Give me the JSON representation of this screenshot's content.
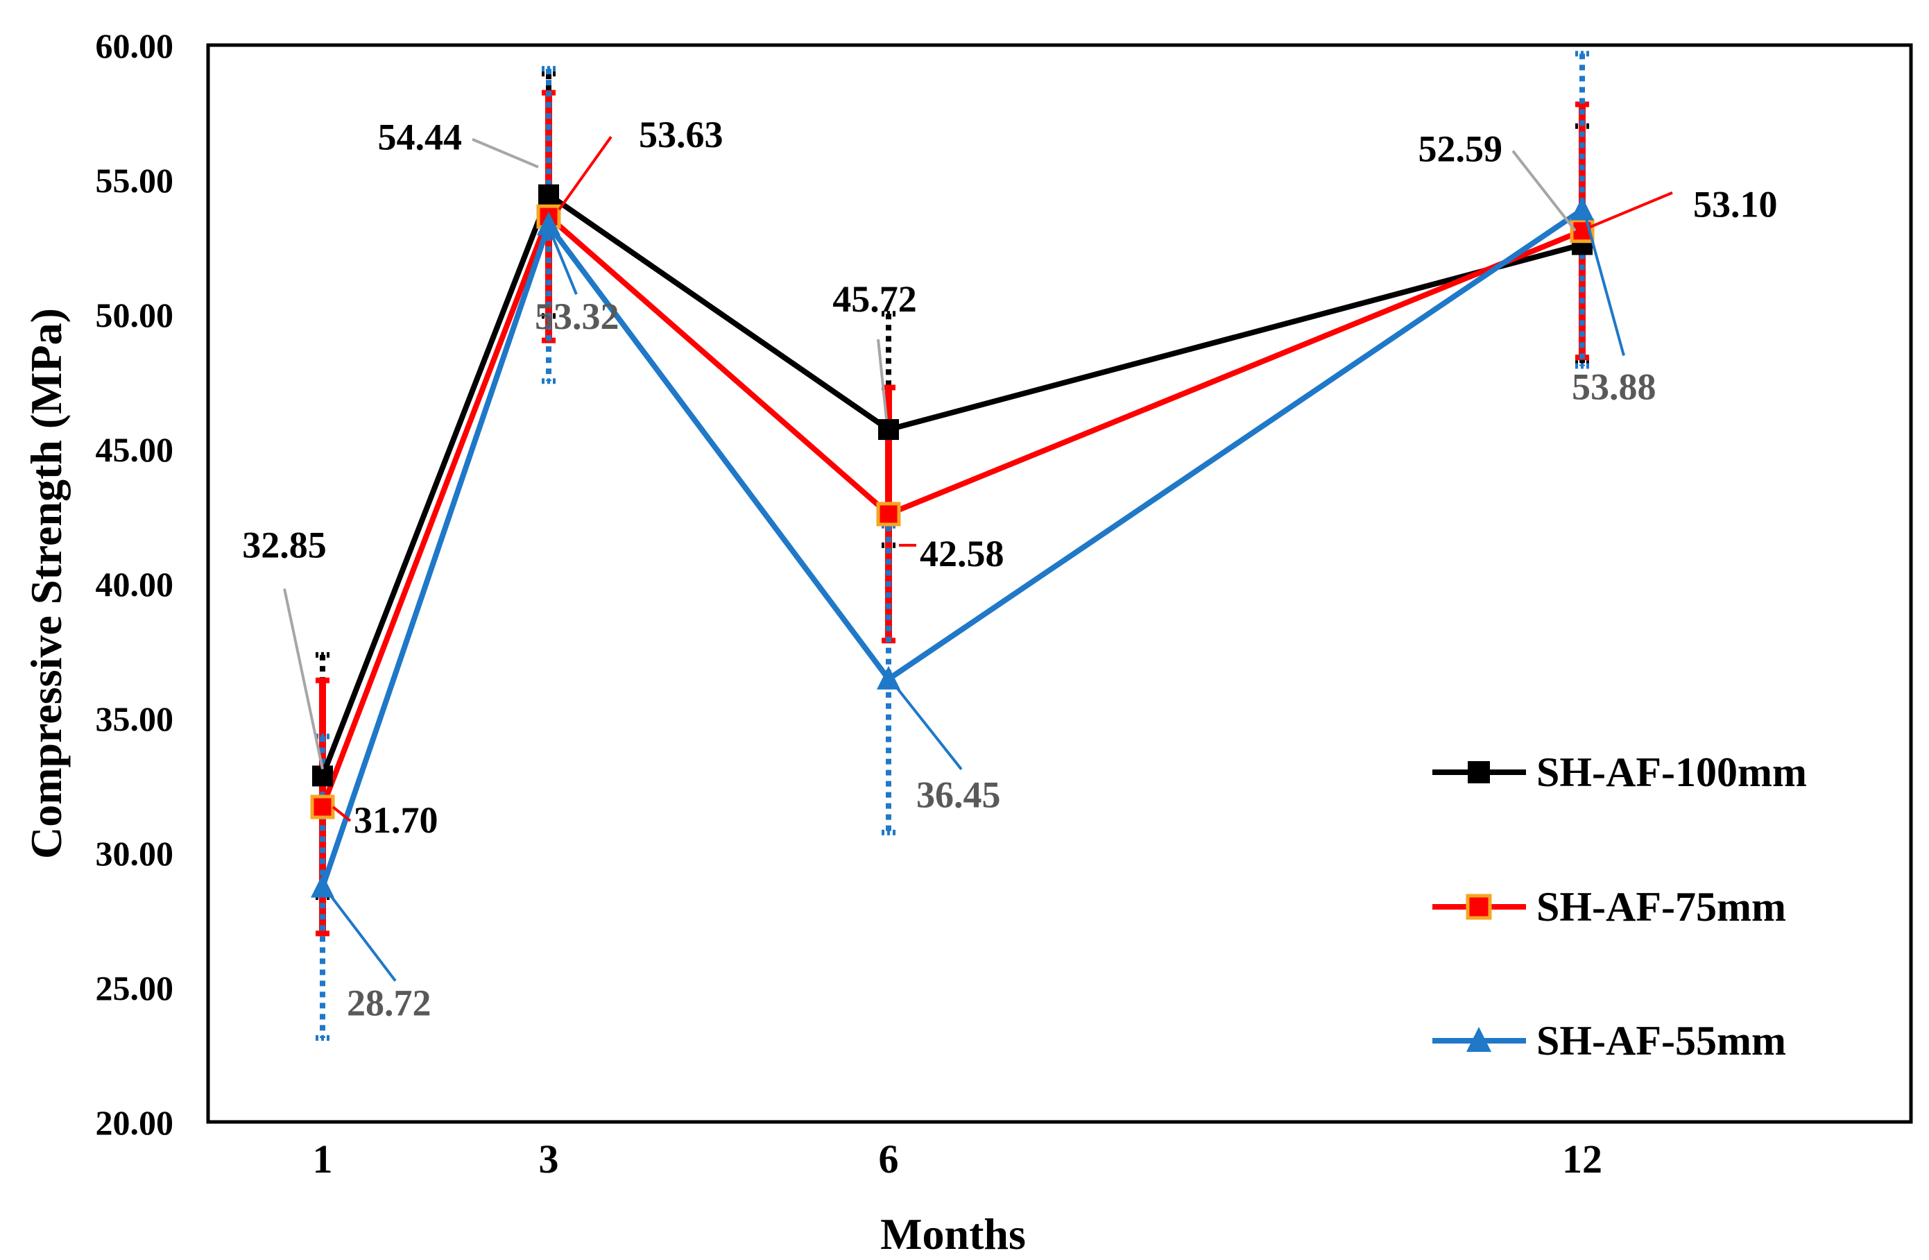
{
  "chart_data": {
    "type": "line",
    "title": "",
    "xlabel": "Months",
    "ylabel": "Compressive Strength (MPa)",
    "x": [
      1,
      3,
      6,
      12
    ],
    "ylim": [
      20,
      60
    ],
    "y_tick_step": 5,
    "y_tick_decimals": 2,
    "grid": false,
    "legend_position": "right",
    "series": [
      {
        "name": "SH-AF-100mm",
        "color": "#000000",
        "marker": "square",
        "values": [
          32.85,
          54.44,
          45.72,
          52.59
        ],
        "error": [
          4.5,
          4.5,
          4.3,
          4.4
        ],
        "labels": [
          "32.85",
          "54.44",
          "45.72",
          "52.59"
        ],
        "label_color": "#000000"
      },
      {
        "name": "SH-AF-75mm",
        "color": "#ff0000",
        "marker": "square",
        "marker_fill": "#ff0000",
        "marker_edge": "#f5a623",
        "values": [
          31.7,
          53.63,
          42.58,
          53.1
        ],
        "error": [
          4.7,
          4.6,
          4.7,
          4.7
        ],
        "labels": [
          "31.70",
          "53.63",
          "42.58",
          "53.10"
        ],
        "label_color": "#000000"
      },
      {
        "name": "SH-AF-55mm",
        "color": "#1f78c8",
        "marker": "triangle",
        "values": [
          28.72,
          53.32,
          36.45,
          53.88
        ],
        "error": [
          5.6,
          5.8,
          5.7,
          5.8
        ],
        "labels": [
          "28.72",
          "53.32",
          "36.45",
          "53.88"
        ],
        "label_color": "#595959"
      }
    ]
  }
}
